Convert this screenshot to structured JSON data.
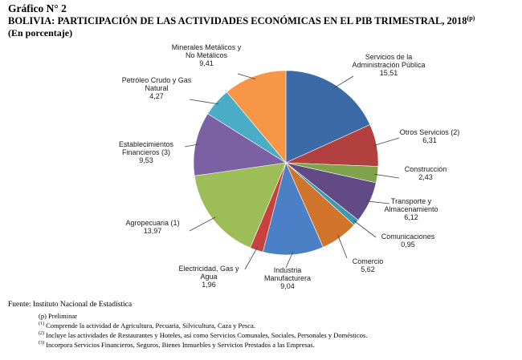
{
  "header": {
    "title": "Gráfico N° 2",
    "subtitle": "BOLIVIA: PARTICIPACIÓN DE LAS ACTIVIDADES ECONÓMICAS EN EL PIB TRIMESTRAL, 2018",
    "subtitle_note": "(p)",
    "units": "(En porcentaje)"
  },
  "chart_data": {
    "type": "pie",
    "slices": [
      {
        "label": "Servicios de la Administración Pública",
        "label_lines": [
          "Servicios de la",
          "Administración Pública"
        ],
        "value_text": "15,51",
        "value": 15.51,
        "color": "#3c6aa6"
      },
      {
        "label": "Otros Servicios (2)",
        "label_lines": [
          "Otros Servicios (2)"
        ],
        "value_text": "6,31",
        "value": 6.31,
        "color": "#b2403e"
      },
      {
        "label": "Construcción",
        "label_lines": [
          "Construcción"
        ],
        "value_text": "2,43",
        "value": 2.43,
        "color": "#7fa24a"
      },
      {
        "label": "Transporte y Almacenamiento",
        "label_lines": [
          "Transporte y",
          "Almacenamiento"
        ],
        "value_text": "6,12",
        "value": 6.12,
        "color": "#614a86"
      },
      {
        "label": "Comunicaciones",
        "label_lines": [
          "Comunicaciones"
        ],
        "value_text": "0,95",
        "value": 0.95,
        "color": "#3b99b0"
      },
      {
        "label": "Comercio",
        "label_lines": [
          "Comercio"
        ],
        "value_text": "5,62",
        "value": 5.62,
        "color": "#d1742b"
      },
      {
        "label": "Industria Manufacturera",
        "label_lines": [
          "Industria",
          "Manufacturera"
        ],
        "value_text": "9,04",
        "value": 9.04,
        "color": "#4b80c6"
      },
      {
        "label": "Electricidad, Gas y Agua",
        "label_lines": [
          "Electricidad, Gas y",
          "Agua"
        ],
        "value_text": "1,96",
        "value": 1.96,
        "color": "#c8423f"
      },
      {
        "label": "Agropecuaria (1)",
        "label_lines": [
          "Agropecuaria (1)"
        ],
        "value_text": "13,97",
        "value": 13.97,
        "color": "#9dbd58"
      },
      {
        "label": "Establecimientos Financieros (3)",
        "label_lines": [
          "Establecimientos",
          "Financieros (3)"
        ],
        "value_text": "9,53",
        "value": 9.53,
        "color": "#7c60a4"
      },
      {
        "label": "Petróleo Crudo y Gas Natural",
        "label_lines": [
          "Petróleo Crudo y Gas",
          "Natural"
        ],
        "value_text": "4,27",
        "value": 4.27,
        "color": "#4aacc6"
      },
      {
        "label": "Minerales Metálicos y No Metálicos",
        "label_lines": [
          "Minerales Metálicos y",
          "No Metálicos"
        ],
        "value_text": "9,41",
        "value": 9.41,
        "color": "#f79646"
      }
    ]
  },
  "footer": {
    "source": "Fuente: Instituto Nacional de Estadística",
    "notes": [
      {
        "mark": "(p)",
        "text": "Preliminar"
      },
      {
        "mark": "(1)",
        "text": "Comprende la actividad de Agricultura, Pecuaria, Silvicultura, Caza y Pesca."
      },
      {
        "mark": "(2)",
        "text": "Incluye las actividades de Restaurantes y Hoteles, así como Servicios Comunales, Sociales, Personales y Domésticos."
      },
      {
        "mark": "(3)",
        "text": "Incorpora Servicios Financieros, Seguros, Bienes Inmuebles y Servicios Prestados a las Empresas."
      }
    ]
  }
}
